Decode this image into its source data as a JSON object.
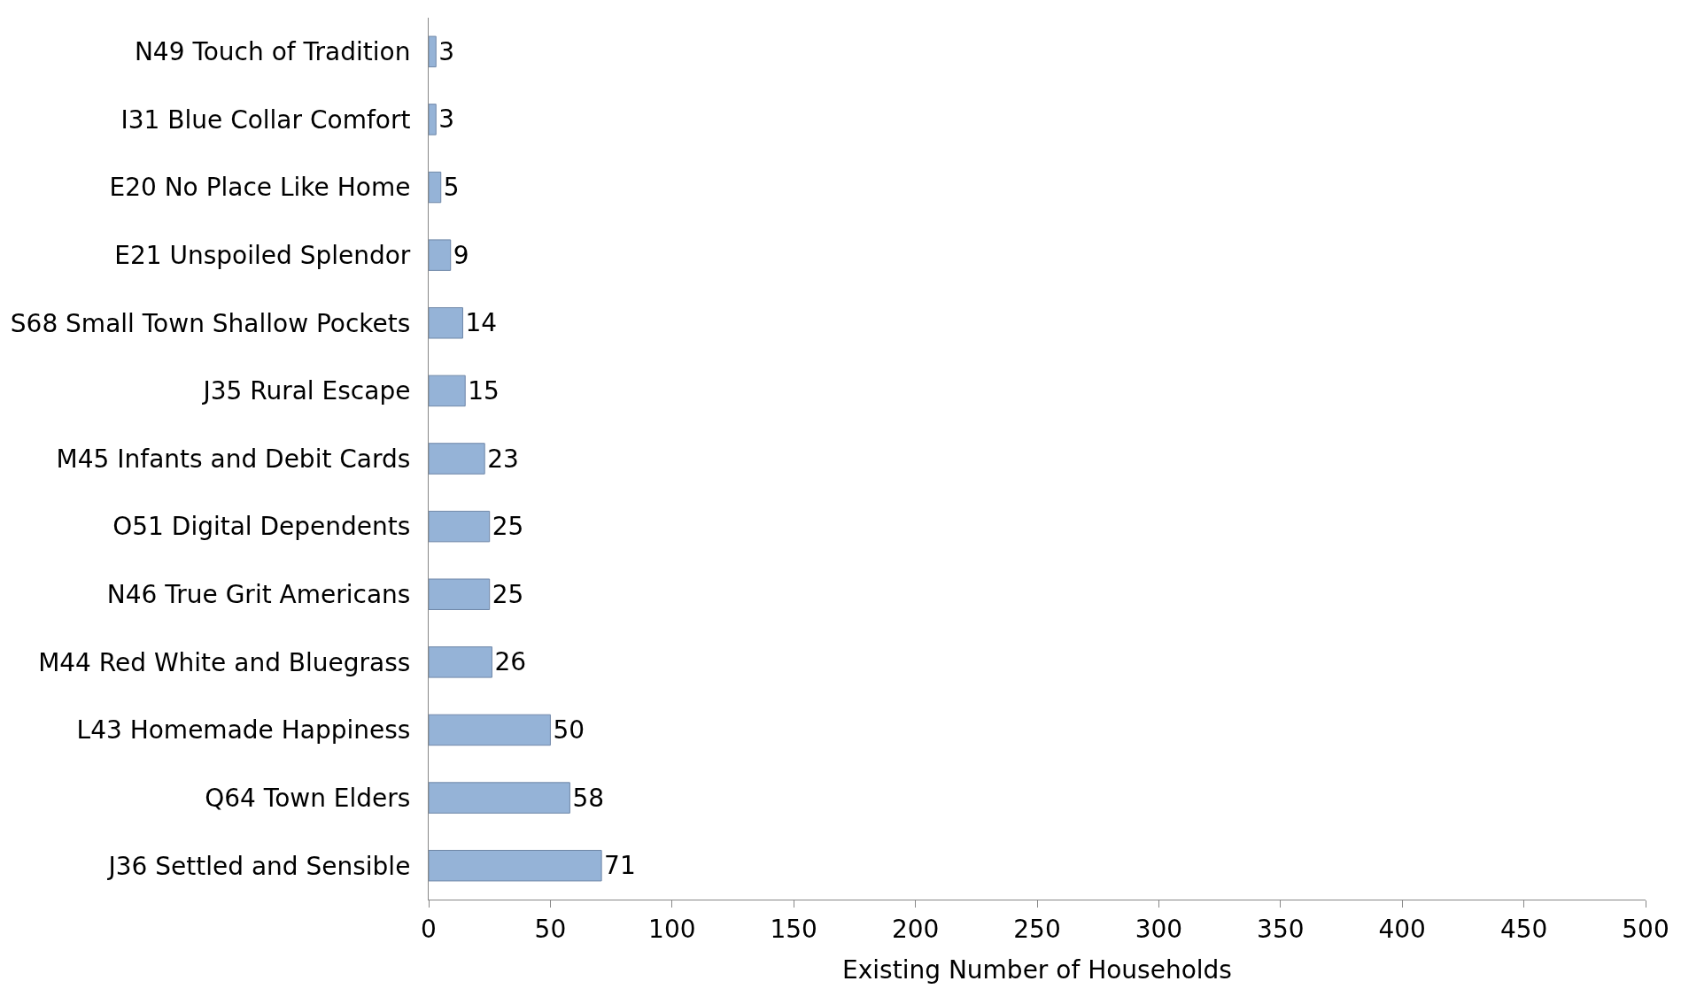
{
  "chart_data": {
    "type": "bar",
    "orientation": "horizontal",
    "xlabel": "Existing Number of Households",
    "categories": [
      "N49 Touch of Tradition",
      "I31 Blue Collar Comfort",
      "E20 No Place Like Home",
      "E21 Unspoiled Splendor",
      "S68 Small Town Shallow Pockets",
      "J35 Rural Escape",
      "M45 Infants and Debit Cards",
      "O51 Digital Dependents",
      "N46 True Grit Americans",
      "M44 Red White and Bluegrass",
      "L43 Homemade Happiness",
      "Q64 Town Elders",
      "J36 Settled and Sensible"
    ],
    "values": [
      3,
      3,
      5,
      9,
      14,
      15,
      23,
      25,
      25,
      26,
      50,
      58,
      71
    ],
    "color": "#95b3d7",
    "xlim": [
      0,
      500
    ],
    "xticks": [
      0,
      50,
      100,
      150,
      200,
      250,
      300,
      350,
      400,
      450,
      500
    ],
    "grid": false,
    "data_labels": true
  }
}
